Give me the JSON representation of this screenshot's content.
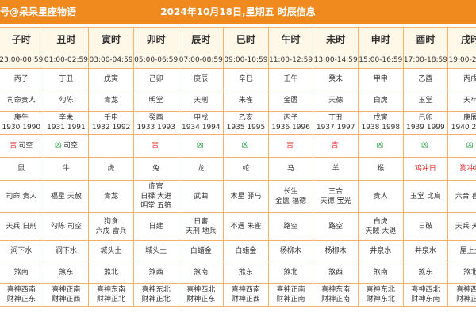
{
  "header": {
    "source": "号@呆呆星座物语",
    "title": "2024年10月18日,星期五 时辰信息"
  },
  "columns": [
    {
      "hour": "子时",
      "range": "23:00-00:59",
      "ganzhi": "丙子",
      "god": "司命贵人",
      "chong": [
        "庚午",
        "1930 1990"
      ],
      "luck": "吉",
      "luck_type": "bad",
      "conflict": "司空",
      "animal": "鼠",
      "animal_type": "",
      "stars": [
        "司命 贵人"
      ],
      "evils": [
        "天兵 日刑"
      ],
      "water": "涧下水",
      "sha": "煞南",
      "directions": [
        "喜神西南",
        "财神正东"
      ]
    },
    {
      "hour": "丑时",
      "range": "01:00-02:59",
      "ganzhi": "丁丑",
      "god": "勾陈",
      "chong": [
        "辛未",
        "1931 1991"
      ],
      "luck": "凶",
      "luck_type": "good",
      "conflict": "司空",
      "animal": "牛",
      "animal_type": "",
      "stars": [
        "福星 天赦"
      ],
      "evils": [
        "勾陈 司空"
      ],
      "water": "涧下水",
      "sha": "煞东",
      "directions": [
        "喜神正南",
        "财神正西"
      ]
    },
    {
      "hour": "寅时",
      "range": "03:00-04:59",
      "ganzhi": "戊寅",
      "god": "青龙",
      "chong": [
        "壬申",
        "1932 1992"
      ],
      "luck": "",
      "luck_type": "",
      "conflict": "",
      "animal": "虎",
      "animal_type": "",
      "stars": [
        "青龙"
      ],
      "evils": [
        "狗食",
        "六戊 雷兵"
      ],
      "water": "城头土",
      "sha": "煞北",
      "directions": [
        "喜神东南",
        "财神正北"
      ]
    },
    {
      "hour": "卯时",
      "range": "05:00-06:59",
      "ganzhi": "己卯",
      "god": "明堂",
      "chong": [
        "癸酉",
        "1933 1993"
      ],
      "luck": "吉",
      "luck_type": "bad",
      "conflict": "",
      "animal": "兔",
      "animal_type": "",
      "stars": [
        "临官",
        "日禄 大进",
        "明堂 五符"
      ],
      "evils": [
        "日建"
      ],
      "water": "城头土",
      "sha": "煞西",
      "directions": [
        "喜神东北",
        "财神正北"
      ]
    },
    {
      "hour": "辰时",
      "range": "07:00-08:59",
      "ganzhi": "庚辰",
      "god": "天刑",
      "chong": [
        "甲戌",
        "1934 1994"
      ],
      "luck": "凶",
      "luck_type": "good",
      "conflict": "",
      "animal": "龙",
      "animal_type": "",
      "stars": [
        "武曲"
      ],
      "evils": [
        "日害",
        "天刑 地兵"
      ],
      "water": "白蜡金",
      "sha": "煞南",
      "directions": [
        "喜神西北",
        "财神正东"
      ]
    },
    {
      "hour": "巳时",
      "range": "09:00-10:59",
      "ganzhi": "辛巳",
      "god": "朱雀",
      "chong": [
        "乙亥",
        "1935 1995"
      ],
      "luck": "凶",
      "luck_type": "good",
      "conflict": "",
      "animal": "蛇",
      "animal_type": "",
      "stars": [
        "木星 驿马"
      ],
      "evils": [
        "不遇 朱雀"
      ],
      "water": "白蜡金",
      "sha": "煞东",
      "directions": [
        "喜神西南",
        "财神正西"
      ]
    },
    {
      "hour": "午时",
      "range": "11:00-12:59",
      "ganzhi": "壬午",
      "god": "金匮",
      "chong": [
        "丙子",
        "1936 1996"
      ],
      "luck": "吉",
      "luck_type": "bad",
      "conflict": "",
      "animal": "马",
      "animal_type": "",
      "stars": [
        "长生",
        "金匮 福德"
      ],
      "evils": [
        "路空"
      ],
      "water": "杨柳木",
      "sha": "煞北",
      "directions": [
        "喜神正南",
        "财神正南"
      ]
    },
    {
      "hour": "未时",
      "range": "13:00-14:59",
      "ganzhi": "癸未",
      "god": "天德",
      "chong": [
        "丁丑",
        "1937 1997"
      ],
      "luck": "吉",
      "luck_type": "bad",
      "conflict": "",
      "animal": "羊",
      "animal_type": "",
      "stars": [
        "三合",
        "天德 宝光"
      ],
      "evils": [
        "路空"
      ],
      "water": "杨柳木",
      "sha": "煞西",
      "directions": [
        "喜神东南",
        "财神正南"
      ]
    },
    {
      "hour": "申时",
      "range": "15:00-16:59",
      "ganzhi": "甲申",
      "god": "白虎",
      "chong": [
        "戊寅",
        "1938 1998"
      ],
      "luck": "凶",
      "luck_type": "good",
      "conflict": "",
      "animal": "猴",
      "animal_type": "",
      "stars": [
        "贵人"
      ],
      "evils": [
        "白虎",
        "天賊 大退"
      ],
      "water": "井泉水",
      "sha": "煞南",
      "directions": [
        "喜神东北",
        "财神东北"
      ]
    },
    {
      "hour": "酉时",
      "range": "17:00-18:59",
      "ganzhi": "乙酉",
      "god": "玉堂",
      "chong": [
        "己卯",
        "1939 1999"
      ],
      "luck": "凶",
      "luck_type": "good",
      "conflict": "",
      "animal": "鸡冲日",
      "animal_type": "red",
      "stars": [
        "玉堂 比肩"
      ],
      "evils": [
        "日破"
      ],
      "water": "井泉水",
      "sha": "煞东",
      "directions": [
        "喜神西北",
        "财神东南"
      ]
    },
    {
      "hour": "戌时",
      "range": "19:00-20:59",
      "ganzhi": "丙戌",
      "god": "天牢",
      "chong": [
        "庚辰",
        "1940 2000"
      ],
      "luck": "凶",
      "luck_type": "good",
      "conflict": "",
      "animal": "狗冲年",
      "animal_type": "red",
      "stars": [
        "六合 喜神"
      ],
      "evils": [
        "天兵 天牢"
      ],
      "water": "屋上土",
      "sha": "煞北",
      "directions": [
        "喜神西南",
        "财神正东"
      ]
    }
  ]
}
